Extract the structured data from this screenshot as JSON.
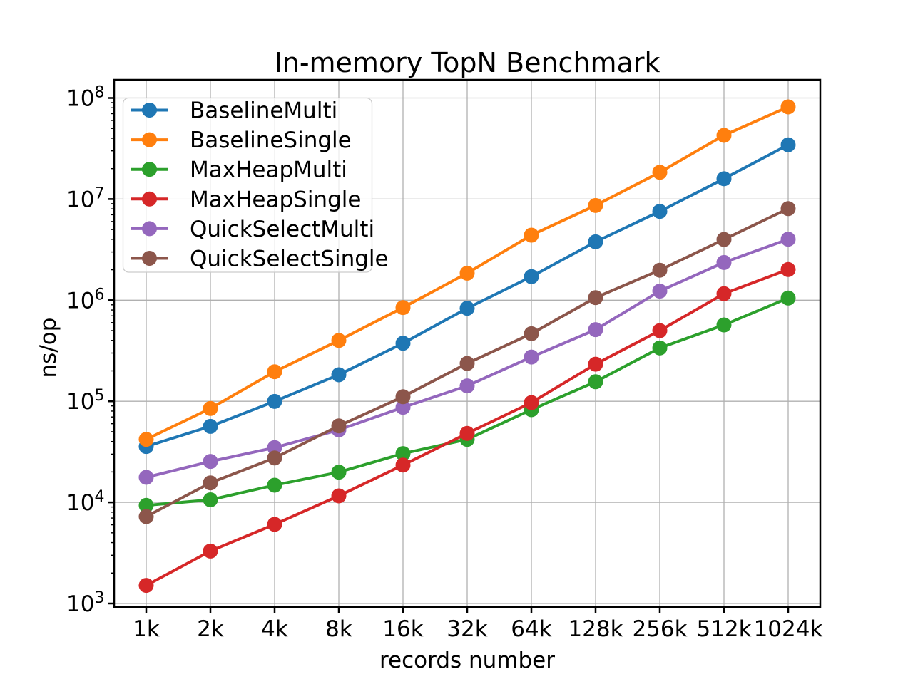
{
  "chart_data": {
    "type": "line",
    "title": "In-memory TopN Benchmark",
    "xlabel": "records number",
    "ylabel": "ns/op",
    "y_scale": "log",
    "y_unit": "ns/op",
    "x_categories": [
      "1k",
      "2k",
      "4k",
      "8k",
      "16k",
      "32k",
      "64k",
      "128k",
      "256k",
      "512k",
      "1024k"
    ],
    "y_ticks_exponents": [
      3,
      4,
      5,
      6,
      7,
      8
    ],
    "ylim_exponents": [
      2.92,
      8.18
    ],
    "grid": true,
    "grid_color": "#b0b0b0",
    "legend_position": "upper left",
    "series": [
      {
        "name": "BaselineMulti",
        "color": "#1f77b4",
        "values": [
          35700,
          56500,
          99800,
          183000,
          375000,
          832000,
          1710000,
          3780000,
          7550000,
          15900000,
          34400000
        ]
      },
      {
        "name": "BaselineSingle",
        "color": "#ff7f0e",
        "values": [
          42000,
          84900,
          196000,
          400000,
          845000,
          1850000,
          4400000,
          8650000,
          18400000,
          42700000,
          81700000
        ]
      },
      {
        "name": "MaxHeapMulti",
        "color": "#2ca02c",
        "values": [
          9340,
          10600,
          14800,
          19900,
          30400,
          42000,
          82600,
          156000,
          337000,
          569000,
          1050000
        ]
      },
      {
        "name": "MaxHeapSingle",
        "color": "#d62728",
        "values": [
          1510,
          3300,
          6060,
          11600,
          23400,
          48100,
          97100,
          233000,
          500000,
          1160000,
          2010000
        ]
      },
      {
        "name": "QuickSelectMulti",
        "color": "#9467bd",
        "values": [
          17700,
          25400,
          34800,
          52100,
          87100,
          142000,
          274000,
          511000,
          1230000,
          2360000,
          4010000
        ]
      },
      {
        "name": "QuickSelectSingle",
        "color": "#8c564b",
        "values": [
          7240,
          15600,
          27500,
          57100,
          111000,
          237000,
          466000,
          1060000,
          1980000,
          3990000,
          8050000
        ]
      }
    ]
  }
}
